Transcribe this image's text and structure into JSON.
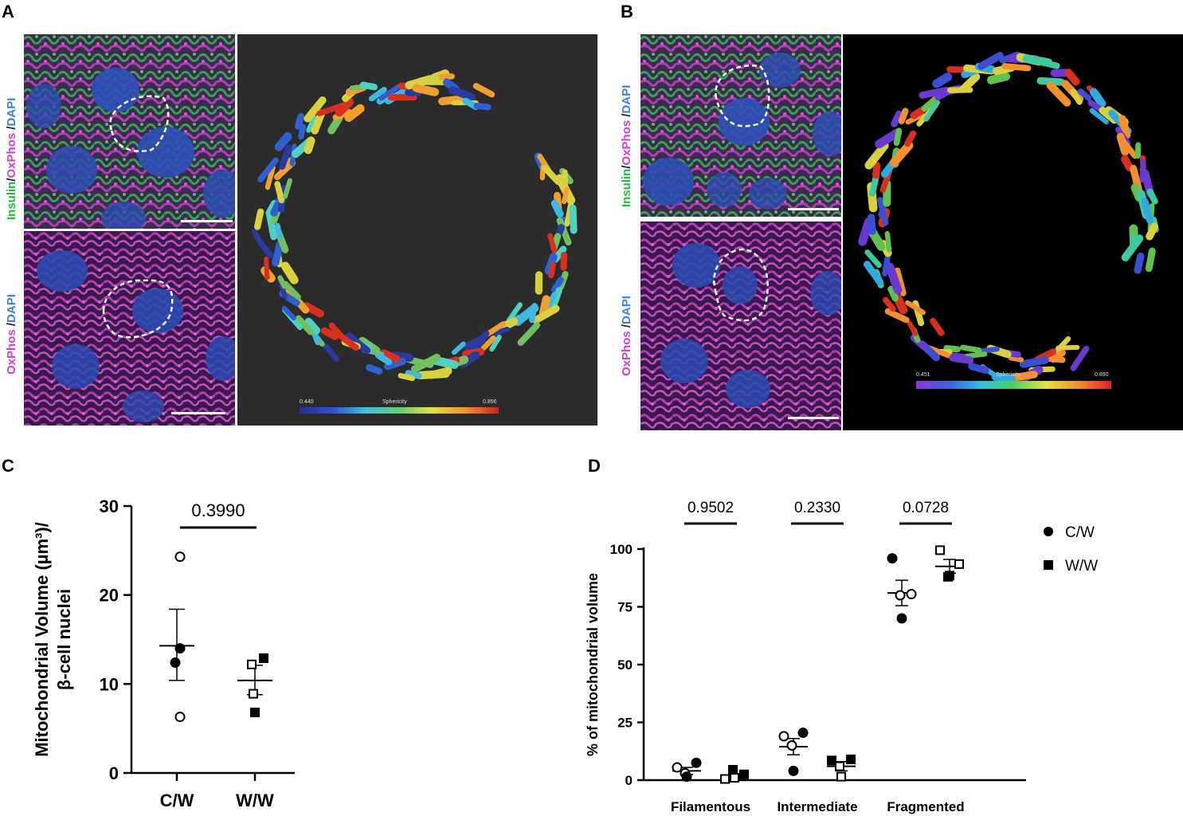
{
  "panels": {
    "A": {
      "letter": "A",
      "top_label": {
        "insulin": "Insulin",
        "slash1": "/",
        "oxphos": "OxPhos",
        "slash2": " /",
        "dapi": "DAPI"
      },
      "bottom_label": {
        "oxphos": "OxPhos",
        "slash": " /",
        "dapi": "DAPI"
      },
      "colorbar": {
        "min": "0.440",
        "title": "Sphericity",
        "max": "0.896"
      }
    },
    "B": {
      "letter": "B",
      "top_label": {
        "insulin": "Insulin",
        "slash1": "/",
        "oxphos": "OxPhos",
        "slash2": " /",
        "dapi": "DAPI"
      },
      "bottom_label": {
        "oxphos": "OxPhos",
        "slash": " /",
        "dapi": "DAPI"
      },
      "colorbar": {
        "min": "0.451",
        "title": "Sphericity",
        "max": "0.890"
      }
    },
    "C": {
      "letter": "C"
    },
    "D": {
      "letter": "D"
    }
  },
  "chart_data": [
    {
      "panel": "C",
      "type": "scatter",
      "categories": [
        "C/W",
        "W/W"
      ],
      "ylabel_line1": "Mitochondrial Volume (µm³)/",
      "ylabel_line2": "β-cell nuclei",
      "ylim": [
        0,
        30
      ],
      "yticks": [
        "0",
        "10",
        "20",
        "30"
      ],
      "annotation": "0.3990",
      "series": [
        {
          "category": "C/W",
          "points": [
            {
              "y": 24.3,
              "marker": "open-circle"
            },
            {
              "y": 14.0,
              "marker": "filled-circle"
            },
            {
              "y": 12.4,
              "marker": "filled-circle"
            },
            {
              "y": 6.3,
              "marker": "open-circle"
            }
          ],
          "mean": 14.3,
          "sem_low": 10.4,
          "sem_high": 18.4
        },
        {
          "category": "W/W",
          "points": [
            {
              "y": 12.9,
              "marker": "filled-square"
            },
            {
              "y": 12.2,
              "marker": "open-square"
            },
            {
              "y": 8.9,
              "marker": "open-square"
            },
            {
              "y": 6.8,
              "marker": "filled-square"
            }
          ],
          "mean": 10.4,
          "sem_low": 8.8,
          "sem_high": 12.1
        }
      ]
    },
    {
      "panel": "D",
      "type": "scatter",
      "categories": [
        "Filamentous",
        "Intermediate",
        "Fragmented"
      ],
      "ylabel": "% of mitochondrial volume",
      "ylim": [
        0,
        100
      ],
      "yticks": [
        "0",
        "25",
        "50",
        "75",
        "100"
      ],
      "annotations": [
        "0.9502",
        "0.2330",
        "0.0728"
      ],
      "legend": [
        {
          "name": "C/W",
          "marker": "filled-circle"
        },
        {
          "name": "W/W",
          "marker": "filled-square"
        }
      ],
      "groups": [
        {
          "category": "Filamentous",
          "cw": {
            "points": [
              {
                "y": 5.5,
                "marker": "open-circle"
              },
              {
                "y": 7.5,
                "marker": "filled-circle"
              },
              {
                "y": 3.0,
                "marker": "open-circle"
              },
              {
                "y": 1.5,
                "marker": "filled-circle"
              }
            ],
            "mean": 4.0,
            "sem_low": 2.5,
            "sem_high": 5.5
          },
          "ww": {
            "points": [
              {
                "y": 0.5,
                "marker": "open-square"
              },
              {
                "y": 2.5,
                "marker": "filled-square"
              },
              {
                "y": 4.5,
                "marker": "filled-square"
              },
              {
                "y": 1.0,
                "marker": "open-square"
              }
            ],
            "mean": 1.5,
            "sem_low": 0.5,
            "sem_high": 2.5
          }
        },
        {
          "category": "Intermediate",
          "cw": {
            "points": [
              {
                "y": 19.0,
                "marker": "open-circle"
              },
              {
                "y": 20.5,
                "marker": "filled-circle"
              },
              {
                "y": 15.0,
                "marker": "open-circle"
              },
              {
                "y": 4.0,
                "marker": "filled-circle"
              }
            ],
            "mean": 14.5,
            "sem_low": 11.0,
            "sem_high": 18.0
          },
          "ww": {
            "points": [
              {
                "y": 8.5,
                "marker": "filled-square"
              },
              {
                "y": 9.0,
                "marker": "filled-square"
              },
              {
                "y": 6.0,
                "marker": "open-square"
              },
              {
                "y": 1.5,
                "marker": "open-square"
              }
            ],
            "mean": 6.0,
            "sem_low": 4.0,
            "sem_high": 8.0
          }
        },
        {
          "category": "Fragmented",
          "cw": {
            "points": [
              {
                "y": 96.0,
                "marker": "filled-circle"
              },
              {
                "y": 80.5,
                "marker": "open-circle"
              },
              {
                "y": 80.0,
                "marker": "open-circle"
              },
              {
                "y": 70.0,
                "marker": "filled-circle"
              }
            ],
            "mean": 81.0,
            "sem_low": 75.5,
            "sem_high": 86.5
          },
          "ww": {
            "points": [
              {
                "y": 99.5,
                "marker": "open-square"
              },
              {
                "y": 93.5,
                "marker": "open-square"
              },
              {
                "y": 88.0,
                "marker": "filled-square"
              },
              {
                "y": 88.5,
                "marker": "filled-square"
              }
            ],
            "mean": 92.5,
            "sem_low": 89.5,
            "sem_high": 95.5
          }
        }
      ]
    }
  ]
}
